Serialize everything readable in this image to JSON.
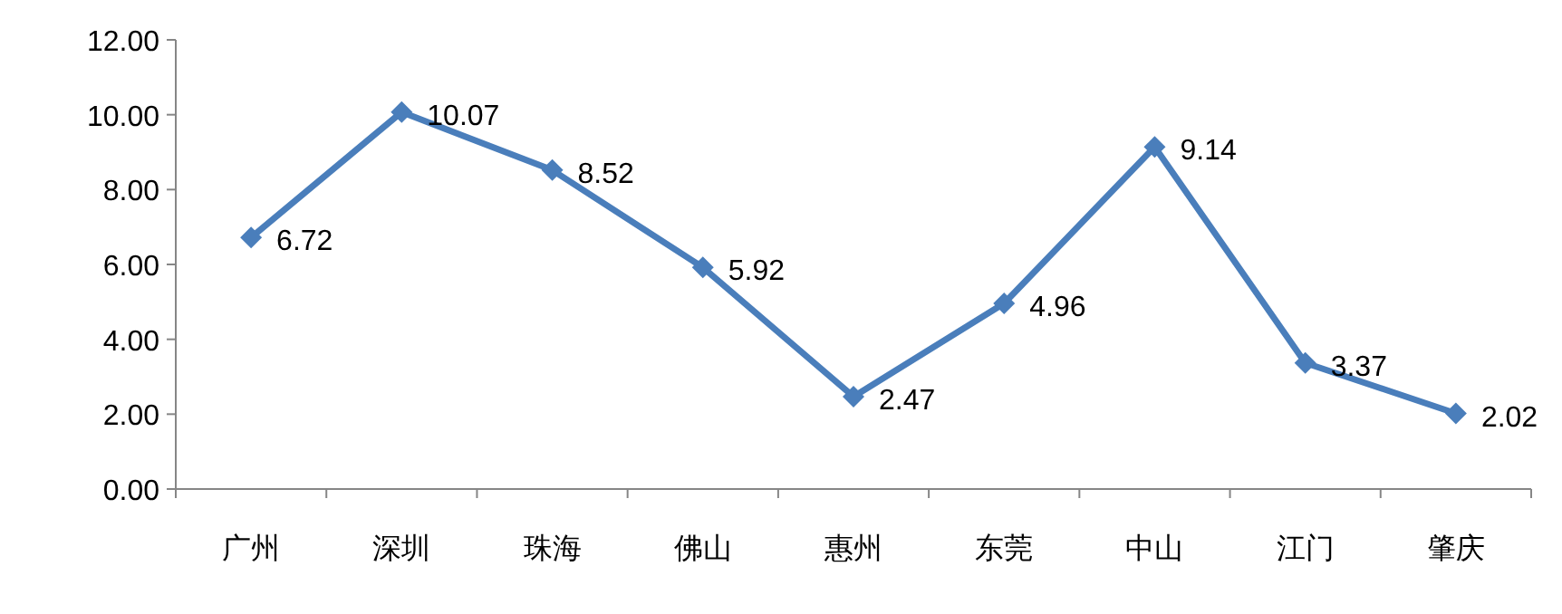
{
  "chart_data": {
    "type": "line",
    "categories": [
      "广州",
      "深圳",
      "珠海",
      "佛山",
      "惠州",
      "东莞",
      "中山",
      "江门",
      "肇庆"
    ],
    "values": [
      6.72,
      10.07,
      8.52,
      5.92,
      2.47,
      4.96,
      9.14,
      3.37,
      2.02
    ],
    "color": "#4a7ebb",
    "ylim": [
      0,
      12
    ],
    "yticks": [
      {
        "value": 0,
        "label": "0.00"
      },
      {
        "value": 2,
        "label": "2.00"
      },
      {
        "value": 4,
        "label": "4.00"
      },
      {
        "value": 6,
        "label": "6.00"
      },
      {
        "value": 8,
        "label": "8.00"
      },
      {
        "value": 10,
        "label": "10.00"
      },
      {
        "value": 12,
        "label": "12.00"
      }
    ],
    "data_labels": true,
    "marker": "diamond",
    "line_style": "solid",
    "grid": false
  }
}
